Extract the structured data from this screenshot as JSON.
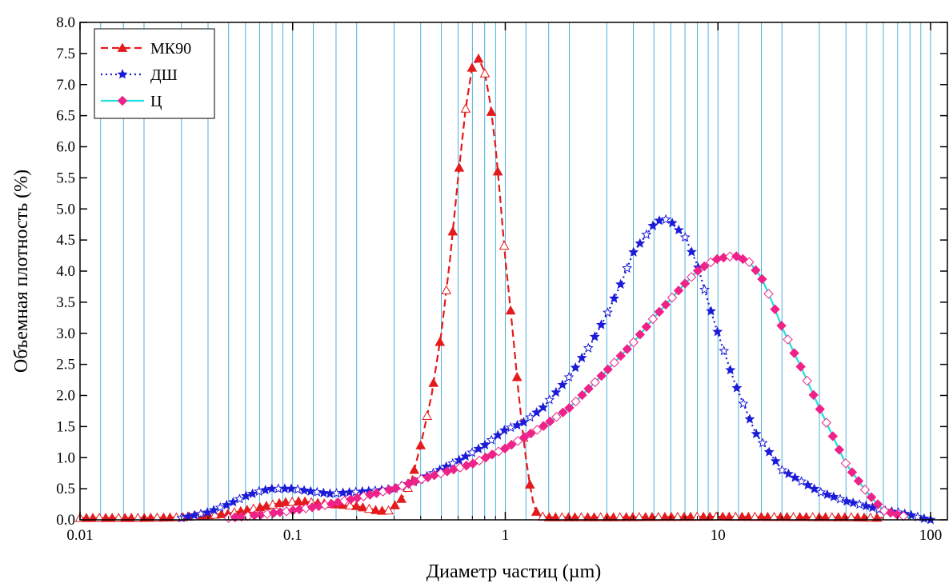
{
  "chart_data": {
    "type": "line",
    "xscale": "log",
    "xlim": [
      0.01,
      120
    ],
    "ylim": [
      0,
      8
    ],
    "xlabel": "Диаметр частиц (µm)",
    "ylabel": "Объемная плотность (%)",
    "xticks": [
      0.01,
      0.1,
      1,
      10,
      100
    ],
    "xtick_labels": [
      "0.01",
      "0.1",
      "1",
      "10",
      "100"
    ],
    "yticks": [
      0,
      0.5,
      1,
      1.5,
      2,
      2.5,
      3,
      3.5,
      4,
      4.5,
      5,
      5.5,
      6,
      6.5,
      7,
      7.5,
      8
    ],
    "ytick_labels": [
      "0.0",
      "0.5",
      "1.0",
      "1.5",
      "2.0",
      "2.5",
      "3.0",
      "3.5",
      "4.0",
      "4.5",
      "5.0",
      "5.5",
      "6.0",
      "6.5",
      "7.0",
      "7.5",
      "8.0"
    ],
    "grid": "vertical",
    "legend_position": "top-left",
    "series": [
      {
        "name": "МК90",
        "color": "#e41a1c",
        "line_style": "dashed",
        "marker": "triangle",
        "points": [
          [
            0.01,
            0.03
          ],
          [
            0.02,
            0.03
          ],
          [
            0.03,
            0.04
          ],
          [
            0.05,
            0.1
          ],
          [
            0.07,
            0.2
          ],
          [
            0.09,
            0.28
          ],
          [
            0.11,
            0.3
          ],
          [
            0.13,
            0.27
          ],
          [
            0.16,
            0.25
          ],
          [
            0.2,
            0.22
          ],
          [
            0.25,
            0.15
          ],
          [
            0.28,
            0.14
          ],
          [
            0.32,
            0.3
          ],
          [
            0.36,
            0.6
          ],
          [
            0.4,
            1.2
          ],
          [
            0.45,
            2.0
          ],
          [
            0.5,
            3.0
          ],
          [
            0.55,
            4.2
          ],
          [
            0.6,
            5.5
          ],
          [
            0.65,
            6.6
          ],
          [
            0.7,
            7.3
          ],
          [
            0.75,
            7.42
          ],
          [
            0.8,
            7.2
          ],
          [
            0.85,
            6.7
          ],
          [
            0.9,
            6.0
          ],
          [
            0.95,
            5.1
          ],
          [
            1.0,
            4.2
          ],
          [
            1.05,
            3.5
          ],
          [
            1.1,
            2.8
          ],
          [
            1.15,
            2.1
          ],
          [
            1.2,
            1.5
          ],
          [
            1.25,
            1.0
          ],
          [
            1.3,
            0.6
          ],
          [
            1.35,
            0.3
          ],
          [
            1.42,
            0.06
          ],
          [
            1.6,
            0.04
          ],
          [
            3,
            0.04
          ],
          [
            10,
            0.05
          ],
          [
            40,
            0.04
          ],
          [
            60,
            0.03
          ]
        ]
      },
      {
        "name": "ДШ",
        "color": "#1c1cd8",
        "line_style": "dotted",
        "marker": "star",
        "points": [
          [
            0.03,
            0.03
          ],
          [
            0.04,
            0.12
          ],
          [
            0.05,
            0.25
          ],
          [
            0.06,
            0.38
          ],
          [
            0.07,
            0.46
          ],
          [
            0.08,
            0.5
          ],
          [
            0.1,
            0.5
          ],
          [
            0.12,
            0.46
          ],
          [
            0.15,
            0.42
          ],
          [
            0.2,
            0.45
          ],
          [
            0.25,
            0.47
          ],
          [
            0.3,
            0.5
          ],
          [
            0.4,
            0.65
          ],
          [
            0.6,
            0.95
          ],
          [
            0.8,
            1.2
          ],
          [
            1.0,
            1.45
          ],
          [
            1.2,
            1.55
          ],
          [
            1.5,
            1.8
          ],
          [
            2.0,
            2.3
          ],
          [
            2.5,
            2.8
          ],
          [
            3.0,
            3.3
          ],
          [
            3.5,
            3.8
          ],
          [
            4.0,
            4.3
          ],
          [
            5.0,
            4.75
          ],
          [
            5.5,
            4.85
          ],
          [
            6.0,
            4.8
          ],
          [
            7.0,
            4.55
          ],
          [
            8.0,
            4.1
          ],
          [
            9.0,
            3.5
          ],
          [
            10.0,
            3.0
          ],
          [
            12.0,
            2.2
          ],
          [
            15.0,
            1.4
          ],
          [
            20.0,
            0.8
          ],
          [
            30.0,
            0.45
          ],
          [
            40.0,
            0.3
          ],
          [
            50.0,
            0.22
          ],
          [
            60.0,
            0.15
          ],
          [
            70.0,
            0.12
          ],
          [
            80.0,
            0.08
          ],
          [
            90.0,
            0.03
          ],
          [
            100.0,
            0.0
          ]
        ]
      },
      {
        "name": "Ц",
        "color": "#22dfdf",
        "marker_color": "#ee2288",
        "line_style": "solid",
        "marker": "diamond",
        "points": [
          [
            0.05,
            0.03
          ],
          [
            0.07,
            0.08
          ],
          [
            0.1,
            0.15
          ],
          [
            0.15,
            0.25
          ],
          [
            0.2,
            0.35
          ],
          [
            0.3,
            0.5
          ],
          [
            0.4,
            0.65
          ],
          [
            0.5,
            0.75
          ],
          [
            0.7,
            0.9
          ],
          [
            1.0,
            1.15
          ],
          [
            1.5,
            1.5
          ],
          [
            2.0,
            1.8
          ],
          [
            3.0,
            2.4
          ],
          [
            4.0,
            2.85
          ],
          [
            5.0,
            3.25
          ],
          [
            6.0,
            3.55
          ],
          [
            7.0,
            3.8
          ],
          [
            8.0,
            4.0
          ],
          [
            9.0,
            4.12
          ],
          [
            10.0,
            4.2
          ],
          [
            12.0,
            4.25
          ],
          [
            14.0,
            4.15
          ],
          [
            16.0,
            3.9
          ],
          [
            18.0,
            3.5
          ],
          [
            20.0,
            3.1
          ],
          [
            25.0,
            2.4
          ],
          [
            30.0,
            1.8
          ],
          [
            40.0,
            0.9
          ],
          [
            50.0,
            0.45
          ],
          [
            60.0,
            0.15
          ],
          [
            70.0,
            0.08
          ],
          [
            80.0,
            0.04
          ]
        ]
      }
    ]
  }
}
